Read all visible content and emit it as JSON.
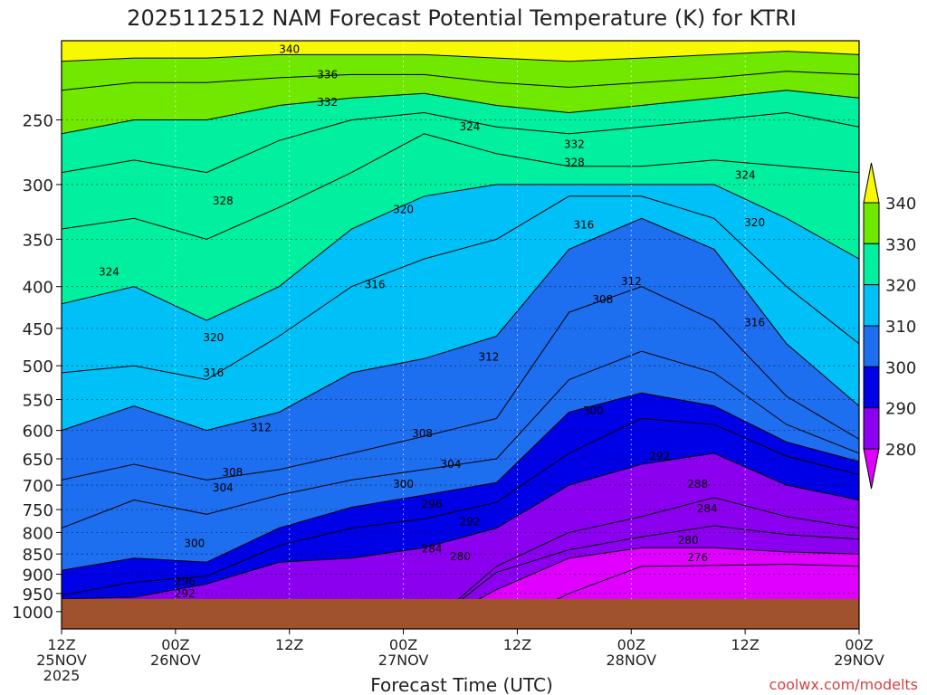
{
  "chart_data": {
    "type": "contour",
    "title": "2025112512 NAM Forecast Potential Temperature (K) for KTRI",
    "xlabel": "Forecast Time (UTC)",
    "ylabel": "",
    "credit": "coolwx.com/modelts",
    "x_ticks": [
      {
        "hour": 0,
        "line1": "12Z",
        "line2": "25NOV",
        "line3": "2025"
      },
      {
        "hour": 12,
        "line1": "00Z",
        "line2": "26NOV",
        "line3": ""
      },
      {
        "hour": 24,
        "line1": "12Z",
        "line2": "",
        "line3": ""
      },
      {
        "hour": 36,
        "line1": "00Z",
        "line2": "27NOV",
        "line3": ""
      },
      {
        "hour": 48,
        "line1": "12Z",
        "line2": "",
        "line3": ""
      },
      {
        "hour": 60,
        "line1": "00Z",
        "line2": "28NOV",
        "line3": ""
      },
      {
        "hour": 72,
        "line1": "12Z",
        "line2": "",
        "line3": ""
      },
      {
        "hour": 84,
        "line1": "00Z",
        "line2": "29NOV",
        "line3": ""
      }
    ],
    "xlim_hours": [
      0,
      84
    ],
    "y_ticks_hpa": [
      250,
      300,
      350,
      400,
      450,
      500,
      550,
      600,
      650,
      700,
      750,
      800,
      850,
      900,
      950,
      1000
    ],
    "ylim_hpa": [
      200,
      1050
    ],
    "y_scale": "log",
    "grid": true,
    "contour_interval_k": 4,
    "colorbar": {
      "position": "right",
      "ticks": [
        280,
        290,
        300,
        310,
        320,
        330,
        340
      ],
      "bins": [
        {
          "min": 270,
          "max": 280,
          "color": "#e000ff"
        },
        {
          "min": 280,
          "max": 290,
          "color": "#8c00f0"
        },
        {
          "min": 290,
          "max": 300,
          "color": "#0000e6"
        },
        {
          "min": 300,
          "max": 310,
          "color": "#1e6ef0"
        },
        {
          "min": 310,
          "max": 320,
          "color": "#00c0f8"
        },
        {
          "min": 320,
          "max": 330,
          "color": "#00f0a0"
        },
        {
          "min": 330,
          "max": 340,
          "color": "#70e800"
        },
        {
          "min": 340,
          "max": 350,
          "color": "#f8f800"
        }
      ]
    },
    "ground_color": "#a0522d",
    "surface_pressure_hpa": 965,
    "isentropes": [
      {
        "theta": 276,
        "p": [
          1050,
          1050,
          1050,
          1050,
          1050,
          1050,
          1050,
          950,
          880,
          878,
          875,
          880
        ]
      },
      {
        "theta": 280,
        "p": [
          1050,
          1050,
          1050,
          1050,
          1050,
          1050,
          940,
          860,
          835,
          835,
          845,
          850
        ]
      },
      {
        "theta": 284,
        "p": [
          1050,
          1050,
          1050,
          1050,
          1050,
          1050,
          895,
          840,
          810,
          785,
          805,
          815
        ]
      },
      {
        "theta": 288,
        "p": [
          1050,
          1050,
          1050,
          1050,
          1050,
          1050,
          880,
          800,
          765,
          725,
          765,
          790
        ]
      },
      {
        "theta": 292,
        "p": [
          965,
          960,
          925,
          870,
          860,
          835,
          790,
          700,
          660,
          640,
          700,
          730
        ]
      },
      {
        "theta": 296,
        "p": [
          955,
          920,
          905,
          830,
          790,
          770,
          735,
          640,
          580,
          590,
          645,
          680
        ]
      },
      {
        "theta": 300,
        "p": [
          890,
          860,
          870,
          790,
          745,
          720,
          695,
          570,
          540,
          560,
          620,
          655
        ]
      },
      {
        "theta": 304,
        "p": [
          790,
          730,
          760,
          720,
          690,
          670,
          650,
          520,
          480,
          510,
          590,
          640
        ]
      },
      {
        "theta": 308,
        "p": [
          690,
          660,
          690,
          670,
          640,
          610,
          580,
          430,
          400,
          440,
          545,
          615
        ]
      },
      {
        "theta": 312,
        "p": [
          600,
          560,
          600,
          570,
          510,
          490,
          460,
          360,
          330,
          360,
          470,
          560
        ]
      },
      {
        "theta": 316,
        "p": [
          510,
          500,
          520,
          460,
          400,
          370,
          350,
          310,
          310,
          330,
          400,
          470
        ]
      },
      {
        "theta": 320,
        "p": [
          420,
          400,
          440,
          400,
          340,
          310,
          300,
          300,
          300,
          300,
          330,
          370
        ]
      },
      {
        "theta": 324,
        "p": [
          340,
          330,
          350,
          320,
          290,
          260,
          275,
          285,
          285,
          280,
          285,
          290
        ]
      },
      {
        "theta": 328,
        "p": [
          290,
          280,
          290,
          265,
          250,
          245,
          255,
          260,
          255,
          250,
          245,
          255
        ]
      },
      {
        "theta": 332,
        "p": [
          260,
          250,
          250,
          240,
          235,
          232,
          240,
          245,
          240,
          235,
          230,
          235
        ]
      },
      {
        "theta": 336,
        "p": [
          230,
          225,
          225,
          222,
          220,
          220,
          225,
          228,
          225,
          222,
          218,
          220
        ]
      },
      {
        "theta": 340,
        "p": [
          212,
          210,
          210,
          208,
          208,
          208,
          210,
          212,
          210,
          208,
          206,
          208
        ]
      }
    ],
    "contour_labels": [
      {
        "theta": 340,
        "hour": 24,
        "p": 205
      },
      {
        "theta": 336,
        "hour": 28,
        "p": 220
      },
      {
        "theta": 332,
        "hour": 28,
        "p": 238
      },
      {
        "theta": 332,
        "hour": 54,
        "p": 268
      },
      {
        "theta": 328,
        "hour": 54,
        "p": 282
      },
      {
        "theta": 324,
        "hour": 43,
        "p": 255
      },
      {
        "theta": 324,
        "hour": 72,
        "p": 292
      },
      {
        "theta": 328,
        "hour": 17,
        "p": 314
      },
      {
        "theta": 324,
        "hour": 5,
        "p": 384
      },
      {
        "theta": 320,
        "hour": 36,
        "p": 322
      },
      {
        "theta": 316,
        "hour": 55,
        "p": 336
      },
      {
        "theta": 320,
        "hour": 73,
        "p": 334
      },
      {
        "theta": 316,
        "hour": 33,
        "p": 398
      },
      {
        "theta": 312,
        "hour": 60,
        "p": 394
      },
      {
        "theta": 308,
        "hour": 57,
        "p": 415
      },
      {
        "theta": 320,
        "hour": 16,
        "p": 462
      },
      {
        "theta": 316,
        "hour": 73,
        "p": 443
      },
      {
        "theta": 316,
        "hour": 16,
        "p": 510
      },
      {
        "theta": 312,
        "hour": 45,
        "p": 488
      },
      {
        "theta": 300,
        "hour": 56,
        "p": 568
      },
      {
        "theta": 312,
        "hour": 21,
        "p": 595
      },
      {
        "theta": 308,
        "hour": 38,
        "p": 605
      },
      {
        "theta": 304,
        "hour": 41,
        "p": 660
      },
      {
        "theta": 292,
        "hour": 63,
        "p": 645
      },
      {
        "theta": 308,
        "hour": 18,
        "p": 675
      },
      {
        "theta": 304,
        "hour": 17,
        "p": 705
      },
      {
        "theta": 300,
        "hour": 36,
        "p": 698
      },
      {
        "theta": 288,
        "hour": 67,
        "p": 698
      },
      {
        "theta": 296,
        "hour": 39,
        "p": 738
      },
      {
        "theta": 284,
        "hour": 68,
        "p": 748
      },
      {
        "theta": 292,
        "hour": 43,
        "p": 776
      },
      {
        "theta": 280,
        "hour": 66,
        "p": 818
      },
      {
        "theta": 300,
        "hour": 14,
        "p": 825
      },
      {
        "theta": 284,
        "hour": 39,
        "p": 838
      },
      {
        "theta": 280,
        "hour": 42,
        "p": 856
      },
      {
        "theta": 276,
        "hour": 67,
        "p": 858
      },
      {
        "theta": 296,
        "hour": 13,
        "p": 918
      },
      {
        "theta": 292,
        "hour": 13,
        "p": 950
      }
    ]
  }
}
